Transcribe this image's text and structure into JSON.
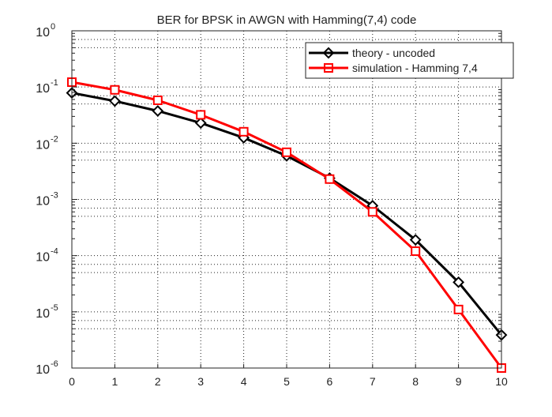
{
  "chart_data": {
    "type": "line",
    "title": "BER for BPSK in AWGN with Hamming(7,4) code",
    "xlabel": "",
    "ylabel": "",
    "x": [
      0,
      1,
      2,
      3,
      4,
      5,
      6,
      7,
      8,
      9,
      10
    ],
    "xlim": [
      0,
      10
    ],
    "ylim": [
      1e-06,
      1
    ],
    "yscale": "log",
    "grid": true,
    "legend_position": "top-right",
    "x_tick_labels": [
      "0",
      "1",
      "2",
      "3",
      "4",
      "5",
      "6",
      "7",
      "8",
      "9",
      "10"
    ],
    "y_tick_labels": [
      {
        "base": "10",
        "exp": "0",
        "value": 1
      },
      {
        "base": "10",
        "exp": "-1",
        "value": 0.1
      },
      {
        "base": "10",
        "exp": "-2",
        "value": 0.01
      },
      {
        "base": "10",
        "exp": "-3",
        "value": 0.001
      },
      {
        "base": "10",
        "exp": "-4",
        "value": 0.0001
      },
      {
        "base": "10",
        "exp": "-5",
        "value": 1e-05
      },
      {
        "base": "10",
        "exp": "-6",
        "value": 1e-06
      }
    ],
    "series": [
      {
        "name": "theory - uncoded",
        "color": "#000000",
        "marker": "diamond",
        "values": [
          0.0786,
          0.0563,
          0.0375,
          0.0229,
          0.0125,
          0.00595,
          0.00239,
          0.000773,
          0.000191,
          3.36e-05,
          3.87e-06
        ]
      },
      {
        "name": "simulation - Hamming 7,4",
        "color": "#ff0000",
        "marker": "square",
        "values": [
          0.122,
          0.089,
          0.058,
          0.032,
          0.016,
          0.0069,
          0.0023,
          0.0006,
          0.00012,
          1.1e-05,
          1e-06
        ]
      }
    ]
  }
}
